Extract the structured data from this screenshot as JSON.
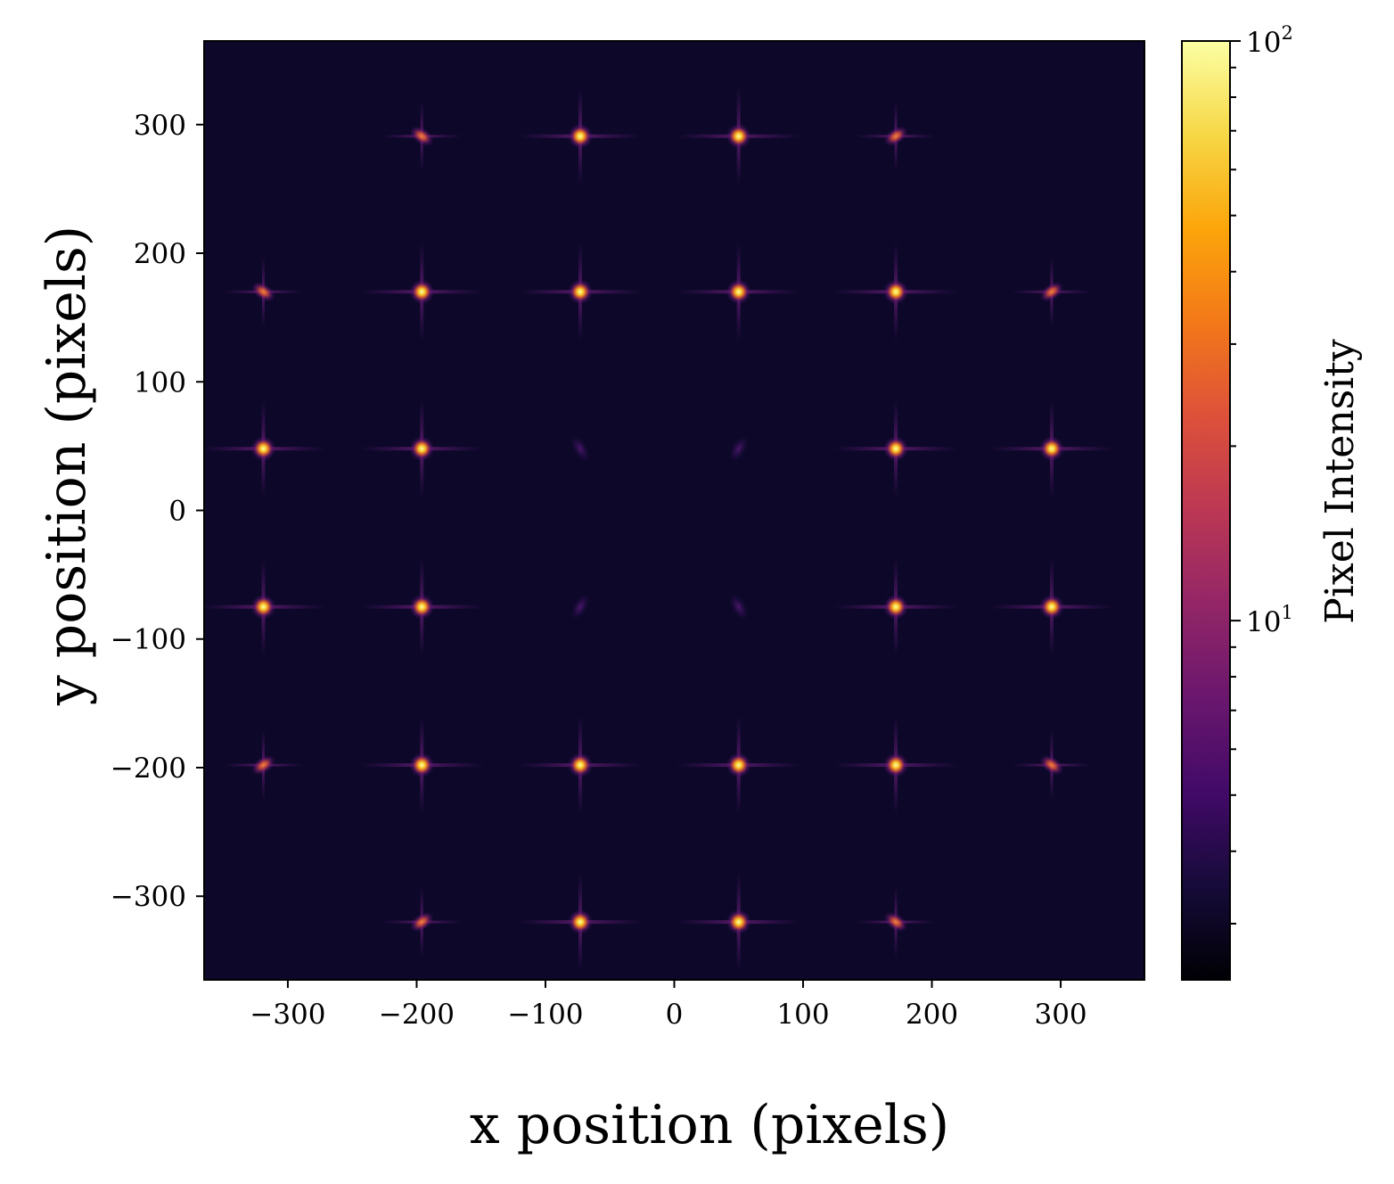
{
  "chart_data": {
    "type": "heatmap",
    "title": "",
    "xlabel": "x position (pixels)",
    "ylabel": "y position (pixels)",
    "xlim": [
      -365,
      365
    ],
    "ylim": [
      -365,
      365
    ],
    "xticks": [
      -300,
      -200,
      -100,
      0,
      100,
      200,
      300
    ],
    "yticks": [
      -300,
      -200,
      -100,
      0,
      100,
      200,
      300
    ],
    "xtick_labels": [
      "−300",
      "−200",
      "−100",
      "0",
      "100",
      "200",
      "300"
    ],
    "ytick_labels": [
      "−300",
      "−200",
      "−100",
      "0",
      "100",
      "200",
      "300"
    ],
    "grid": false,
    "colormap": "inferno",
    "background_intensity": 3,
    "colorbar": {
      "label": "Pixel Intensity",
      "scale": "log",
      "range": [
        2.4,
        100
      ],
      "major_ticks": [
        10,
        100
      ],
      "major_tick_labels": [
        {
          "base": "10",
          "exp": "1"
        },
        {
          "base": "10",
          "exp": "2"
        }
      ]
    },
    "spots": [
      {
        "x": -196,
        "y": 291,
        "intensity": 60,
        "shape": "smeared"
      },
      {
        "x": -73,
        "y": 291,
        "intensity": 100,
        "shape": "point"
      },
      {
        "x": 50,
        "y": 291,
        "intensity": 100,
        "shape": "point"
      },
      {
        "x": 172,
        "y": 291,
        "intensity": 60,
        "shape": "smeared"
      },
      {
        "x": -319,
        "y": 170,
        "intensity": 50,
        "shape": "smeared"
      },
      {
        "x": -196,
        "y": 170,
        "intensity": 100,
        "shape": "point"
      },
      {
        "x": -73,
        "y": 170,
        "intensity": 100,
        "shape": "point"
      },
      {
        "x": 50,
        "y": 170,
        "intensity": 100,
        "shape": "point"
      },
      {
        "x": 172,
        "y": 170,
        "intensity": 100,
        "shape": "point"
      },
      {
        "x": 293,
        "y": 170,
        "intensity": 50,
        "shape": "smeared"
      },
      {
        "x": -319,
        "y": 48,
        "intensity": 100,
        "shape": "point"
      },
      {
        "x": -196,
        "y": 48,
        "intensity": 100,
        "shape": "point"
      },
      {
        "x": -73,
        "y": 48,
        "intensity": 8,
        "shape": "faint"
      },
      {
        "x": 50,
        "y": 48,
        "intensity": 8,
        "shape": "faint"
      },
      {
        "x": 172,
        "y": 48,
        "intensity": 100,
        "shape": "point"
      },
      {
        "x": 293,
        "y": 48,
        "intensity": 100,
        "shape": "point"
      },
      {
        "x": -319,
        "y": -75,
        "intensity": 100,
        "shape": "point"
      },
      {
        "x": -196,
        "y": -75,
        "intensity": 100,
        "shape": "point"
      },
      {
        "x": -73,
        "y": -75,
        "intensity": 8,
        "shape": "faint"
      },
      {
        "x": 50,
        "y": -75,
        "intensity": 8,
        "shape": "faint"
      },
      {
        "x": 172,
        "y": -75,
        "intensity": 100,
        "shape": "point"
      },
      {
        "x": 293,
        "y": -75,
        "intensity": 100,
        "shape": "point"
      },
      {
        "x": -319,
        "y": -198,
        "intensity": 50,
        "shape": "smeared"
      },
      {
        "x": -196,
        "y": -198,
        "intensity": 100,
        "shape": "point"
      },
      {
        "x": -73,
        "y": -198,
        "intensity": 100,
        "shape": "point"
      },
      {
        "x": 50,
        "y": -198,
        "intensity": 100,
        "shape": "point"
      },
      {
        "x": 172,
        "y": -198,
        "intensity": 100,
        "shape": "point"
      },
      {
        "x": 293,
        "y": -198,
        "intensity": 50,
        "shape": "smeared"
      },
      {
        "x": -196,
        "y": -320,
        "intensity": 60,
        "shape": "smeared"
      },
      {
        "x": -73,
        "y": -320,
        "intensity": 100,
        "shape": "point"
      },
      {
        "x": 50,
        "y": -320,
        "intensity": 100,
        "shape": "point"
      },
      {
        "x": 172,
        "y": -320,
        "intensity": 60,
        "shape": "smeared"
      }
    ]
  }
}
